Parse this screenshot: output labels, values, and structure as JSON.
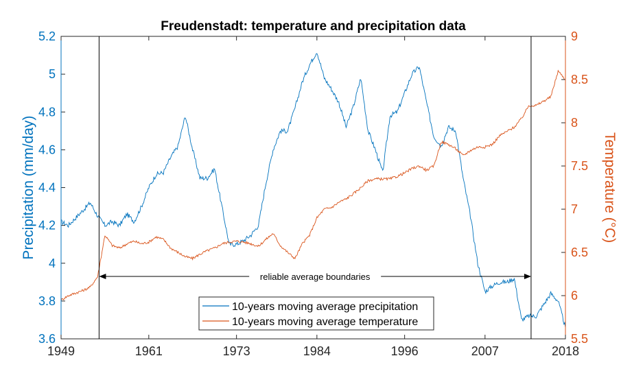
{
  "chart_data": {
    "type": "line",
    "title": "Freudenstadt: temperature and precipitation data",
    "xlabel": "",
    "x_ticks": [
      "1949",
      "1961",
      "1973",
      "1984",
      "1996",
      "2007",
      "2018"
    ],
    "x_tick_values": [
      1949,
      1961,
      1973,
      1984,
      1996,
      2007,
      2018
    ],
    "xlim": [
      1949,
      2018
    ],
    "left_axis": {
      "label": "Precipitation (mm/day)",
      "ylim": [
        3.6,
        5.2
      ],
      "ticks": [
        "3.6",
        "3.8",
        "4",
        "4.2",
        "4.4",
        "4.6",
        "4.8",
        "5",
        "5.2"
      ],
      "tick_values": [
        3.6,
        3.8,
        4.0,
        4.2,
        4.4,
        4.6,
        4.8,
        5.0,
        5.2
      ],
      "color": "#0072BD"
    },
    "right_axis": {
      "label": "Temperature (°C)",
      "ylim": [
        5.5,
        9
      ],
      "ticks": [
        "5.5",
        "6",
        "6.5",
        "7",
        "7.5",
        "8",
        "8.5",
        "9"
      ],
      "tick_values": [
        5.5,
        6.0,
        6.5,
        7.0,
        7.5,
        8.0,
        8.5,
        9.0
      ],
      "color": "#D95319"
    },
    "series": [
      {
        "name": "10-years moving average precipitation",
        "axis": "left",
        "color": "#0072BD",
        "x": [
          1949,
          1950,
          1951,
          1952,
          1953,
          1954,
          1955,
          1956,
          1957,
          1958,
          1959,
          1960,
          1961,
          1962,
          1963,
          1964,
          1965,
          1966,
          1967,
          1968,
          1969,
          1970,
          1971,
          1972,
          1973,
          1974,
          1975,
          1976,
          1977,
          1978,
          1979,
          1980,
          1981,
          1982,
          1983,
          1984,
          1985,
          1986,
          1987,
          1988,
          1989,
          1990,
          1991,
          1992,
          1993,
          1994,
          1995,
          1996,
          1997,
          1998,
          1999,
          2000,
          2001,
          2002,
          2003,
          2004,
          2005,
          2006,
          2007,
          2008,
          2009,
          2010,
          2011,
          2012,
          2013,
          2014,
          2015,
          2016,
          2017,
          2018
        ],
        "values": [
          4.22,
          4.2,
          4.24,
          4.28,
          4.32,
          4.25,
          4.2,
          4.22,
          4.2,
          4.26,
          4.22,
          4.3,
          4.4,
          4.47,
          4.48,
          4.56,
          4.62,
          4.78,
          4.6,
          4.45,
          4.45,
          4.5,
          4.3,
          4.1,
          4.1,
          4.12,
          4.15,
          4.2,
          4.42,
          4.6,
          4.7,
          4.7,
          4.82,
          4.96,
          5.05,
          5.12,
          4.98,
          4.92,
          4.85,
          4.72,
          4.83,
          4.98,
          4.7,
          4.6,
          4.48,
          4.78,
          4.8,
          4.9,
          5.0,
          5.04,
          4.85,
          4.67,
          4.62,
          4.72,
          4.7,
          4.45,
          4.25,
          4.0,
          3.85,
          3.88,
          3.9,
          3.9,
          3.92,
          3.7,
          3.72,
          3.72,
          3.78,
          3.84,
          3.8,
          3.66
        ]
      },
      {
        "name": "10-years moving average temperature",
        "axis": "right",
        "color": "#D95319",
        "x": [
          1949,
          1950,
          1951,
          1952,
          1953,
          1954,
          1955,
          1956,
          1957,
          1958,
          1959,
          1960,
          1961,
          1962,
          1963,
          1964,
          1965,
          1966,
          1967,
          1968,
          1969,
          1970,
          1971,
          1972,
          1973,
          1974,
          1975,
          1976,
          1977,
          1978,
          1979,
          1980,
          1981,
          1982,
          1983,
          1984,
          1985,
          1986,
          1987,
          1988,
          1989,
          1990,
          1991,
          1992,
          1993,
          1994,
          1995,
          1996,
          1997,
          1998,
          1999,
          2000,
          2001,
          2002,
          2003,
          2004,
          2005,
          2006,
          2007,
          2008,
          2009,
          2010,
          2011,
          2012,
          2013,
          2014,
          2015,
          2016,
          2017,
          2018
        ],
        "values": [
          5.95,
          6.0,
          6.03,
          6.06,
          6.1,
          6.22,
          6.7,
          6.58,
          6.55,
          6.6,
          6.63,
          6.6,
          6.62,
          6.68,
          6.65,
          6.55,
          6.5,
          6.45,
          6.43,
          6.48,
          6.52,
          6.55,
          6.6,
          6.62,
          6.63,
          6.62,
          6.6,
          6.57,
          6.65,
          6.72,
          6.58,
          6.5,
          6.43,
          6.6,
          6.7,
          6.9,
          7.0,
          7.02,
          7.08,
          7.12,
          7.18,
          7.25,
          7.33,
          7.35,
          7.35,
          7.35,
          7.38,
          7.42,
          7.47,
          7.5,
          7.45,
          7.5,
          7.78,
          7.75,
          7.7,
          7.62,
          7.68,
          7.72,
          7.72,
          7.75,
          7.85,
          7.9,
          7.95,
          8.05,
          8.2,
          8.2,
          8.25,
          8.3,
          8.6,
          8.5
        ]
      }
    ],
    "legend": {
      "placement": "bottom-center",
      "entries": [
        "10-years moving average precipitation",
        "10-years moving average temperature"
      ]
    },
    "annotation": {
      "text": "reliable average boundaries",
      "x_start": 1954.2,
      "x_end": 2013.3,
      "y": 3.93
    },
    "vertical_lines": [
      1954.2,
      2013.3
    ],
    "grid": false
  }
}
